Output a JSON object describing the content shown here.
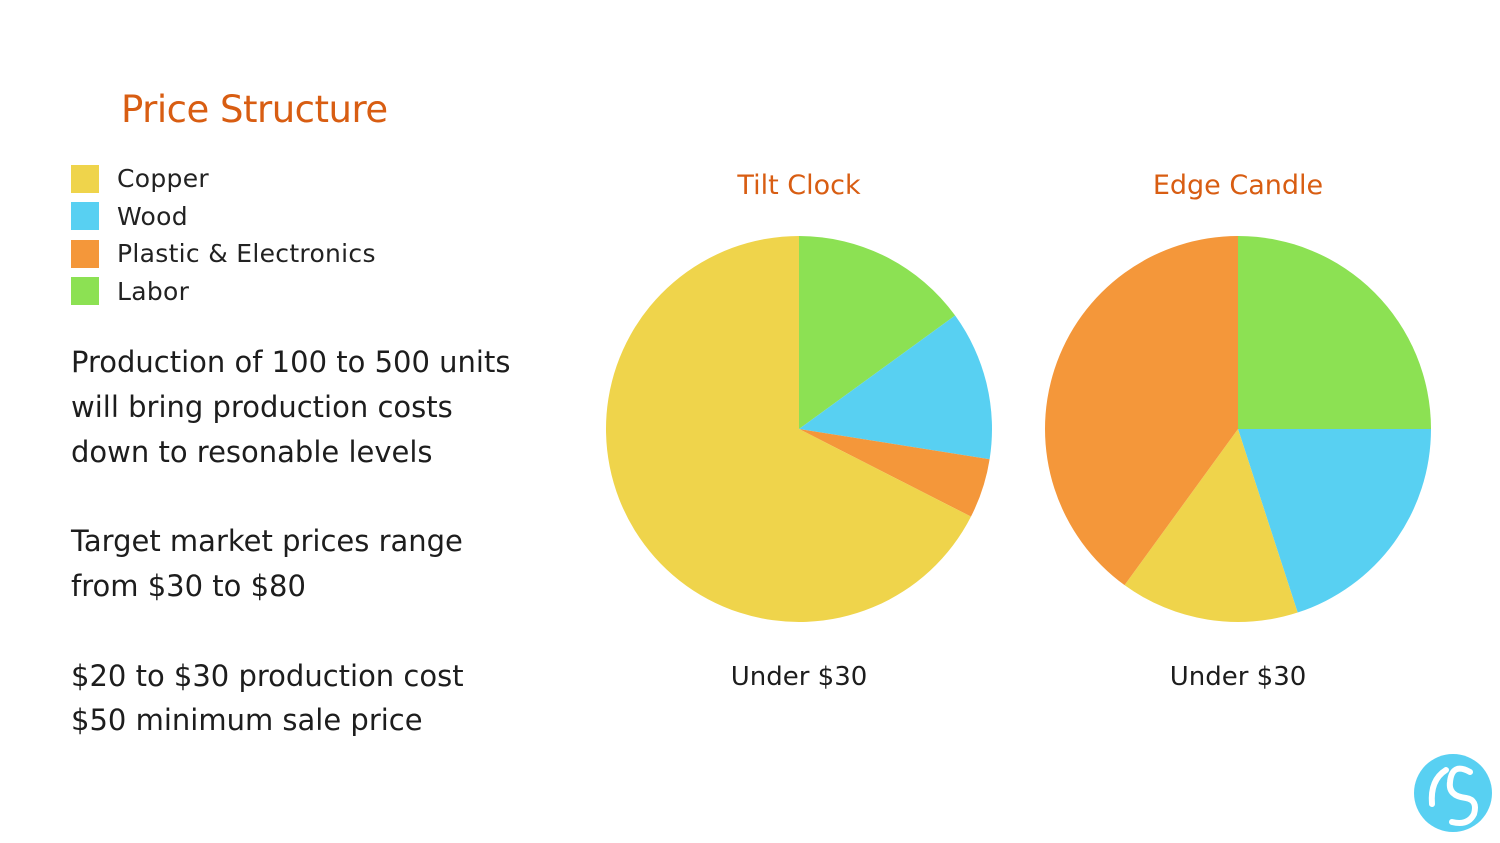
{
  "slide": {
    "title": "Price Structure",
    "body_lines": [
      "Production of 100 to 500 units",
      "will bring production costs",
      "down to resonable levels",
      "",
      "Target market prices range",
      "from $30 to $80",
      "",
      "$20 to $30 production cost",
      "$50 minimum sale price"
    ]
  },
  "legend": [
    {
      "label": "Copper",
      "color": "#efd44b"
    },
    {
      "label": "Wood",
      "color": "#58d0f2"
    },
    {
      "label": "Plastic & Electronics",
      "color": "#f4973a"
    },
    {
      "label": "Labor",
      "color": "#8ce153"
    }
  ],
  "chart_data": [
    {
      "type": "pie",
      "title": "Tilt Clock",
      "caption": "Under $30",
      "slices": [
        {
          "label": "Labor",
          "value": 15,
          "color": "#8ce153"
        },
        {
          "label": "Wood",
          "value": 12.5,
          "color": "#58d0f2"
        },
        {
          "label": "Plastic & Electronics",
          "value": 5,
          "color": "#f4973a"
        },
        {
          "label": "Copper",
          "value": 67.5,
          "color": "#efd44b"
        }
      ]
    },
    {
      "type": "pie",
      "title": "Edge Candle",
      "caption": "Under $30",
      "slices": [
        {
          "label": "Labor",
          "value": 25,
          "color": "#8ce153"
        },
        {
          "label": "Wood",
          "value": 20,
          "color": "#58d0f2"
        },
        {
          "label": "Copper",
          "value": 15,
          "color": "#efd44b"
        },
        {
          "label": "Plastic & Electronics",
          "value": 40,
          "color": "#f4973a"
        }
      ]
    }
  ]
}
